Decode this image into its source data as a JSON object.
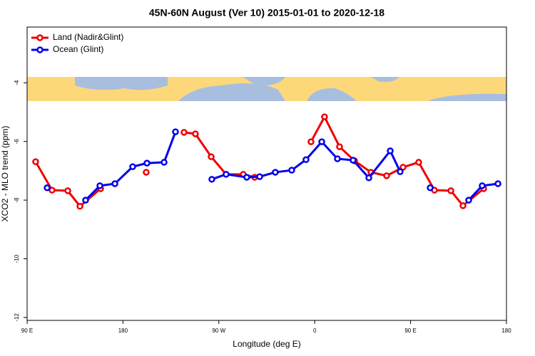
{
  "chart_data": {
    "type": "line",
    "title": "45N-60N August (Ver 10)   2015-01-01 to 2020-12-18",
    "x_label": "Longitude (deg E)",
    "y_label": "XCO2 - MLO trend (ppm)",
    "xlim": [
      90,
      540
    ],
    "ylim": [
      -12.1,
      -2.1
    ],
    "xticks": [
      {
        "value": 90,
        "label": "90 E"
      },
      180,
      {
        "value": 270,
        "label": "90 W"
      },
      {
        "value": 360,
        "label": "0"
      },
      {
        "value": 450,
        "label": "90 E"
      },
      {
        "value": 540,
        "label": "180"
      }
    ],
    "yticks": [
      -4,
      -6,
      -8,
      -10,
      -12
    ],
    "legend": "top-left",
    "series": [
      {
        "name": "Land (Nadir&Glint)",
        "color": "#ee0000",
        "x": [
          98,
          113.4,
          128.2,
          139.6,
          159,
          null,
          201.8,
          null,
          237.3,
          248,
          262.8,
          276.8,
          292.9,
          303.6,
          null,
          356.5,
          369.2,
          383.3,
          397.4,
          412.8,
          427.5,
          442.9,
          457.6,
          472.4,
          487.8,
          499.2,
          518.6
        ],
        "values": [
          -6.69,
          -7.66,
          -7.68,
          -8.21,
          -7.61,
          null,
          -7.05,
          null,
          -5.69,
          -5.74,
          -6.52,
          -7.12,
          -7.12,
          -7.22,
          null,
          -6.01,
          -5.16,
          -6.18,
          -6.66,
          -7.05,
          -7.17,
          -6.88,
          -6.71,
          -7.66,
          -7.68,
          -8.19,
          -7.61
        ]
      },
      {
        "name": "Ocean (Glint)",
        "color": "#0000ee",
        "x": [
          108.8,
          null,
          144.9,
          158.3,
          172.4,
          189.1,
          202.5,
          218.6,
          229.3,
          null,
          263.4,
          276.8,
          296.2,
          308.3,
          323,
          338.4,
          351.8,
          366.6,
          381.3,
          396,
          410.8,
          430.9,
          440.2,
          null,
          468.4,
          null,
          504.5,
          517.2,
          532
        ],
        "values": [
          -7.58,
          null,
          -8.0,
          -7.51,
          -7.44,
          -6.86,
          -6.74,
          -6.71,
          -5.67,
          null,
          -7.29,
          -7.12,
          -7.22,
          -7.2,
          -7.05,
          -6.98,
          -6.62,
          -6.01,
          -6.59,
          -6.64,
          -7.24,
          -6.32,
          -7.03,
          null,
          -7.58,
          null,
          -8.0,
          -7.51,
          -7.44
        ]
      }
    ]
  }
}
